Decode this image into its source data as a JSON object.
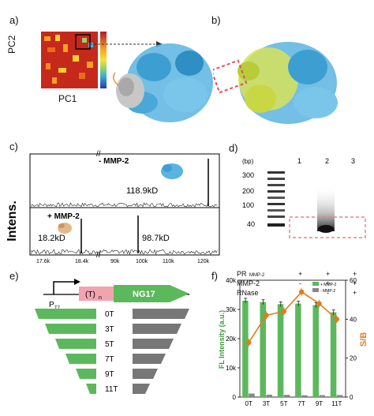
{
  "panels": {
    "a": {
      "label": "a)",
      "x_axis": "PC1",
      "y_axis": "PC2"
    },
    "b": {
      "label": "b)"
    },
    "c": {
      "label": "c)",
      "y_axis": "Intens.",
      "top_label": "- MMP-2",
      "top_peak": "118.9kD",
      "bottom_label": "+ MMP-2",
      "bottom_peak_1": "18.2kD",
      "bottom_peak_2": "98.7kD",
      "x_ticks": [
        "17.6k",
        "18.4k",
        "90k",
        "100k",
        "110k",
        "120k"
      ]
    },
    "d": {
      "label": "d)",
      "unit": "(bp)",
      "ladder": [
        "300",
        "200",
        "100",
        "40"
      ],
      "lanes": [
        "1",
        "2",
        "3"
      ],
      "rows": [
        {
          "name": "PR",
          "sub": "MMP-2",
          "values": [
            "+",
            "+",
            "+"
          ]
        },
        {
          "name": "MMP-2",
          "sub": "",
          "values": [
            "-",
            "+",
            "+"
          ]
        },
        {
          "name": "RNase",
          "sub": "",
          "values": [
            "-",
            "-",
            "+"
          ]
        }
      ]
    },
    "e": {
      "label": "e)",
      "promoter": "P",
      "promoter_sub": "T7",
      "insert": "(T)",
      "insert_sub": "n",
      "gene": "NG17",
      "variants": [
        "0T",
        "3T",
        "5T",
        "7T",
        "9T",
        "11T"
      ]
    },
    "f": {
      "label": "f)"
    }
  },
  "chart_data": {
    "type": "bar",
    "categories": [
      "0T",
      "3T",
      "5T",
      "7T",
      "9T",
      "11T"
    ],
    "series": [
      {
        "name": "+ MMP-2",
        "values": [
          33000,
          32500,
          31800,
          32000,
          31500,
          29000
        ],
        "color": "#5cb85c"
      },
      {
        "name": "- MMP-2",
        "values": [
          1200,
          800,
          750,
          600,
          650,
          700
        ],
        "color": "#888888"
      }
    ],
    "line_series": {
      "name": "S/B",
      "values": [
        28,
        42,
        44,
        54,
        48,
        40
      ],
      "color": "#e07b1f"
    },
    "ylabel": "FL Intensity (a.u.)",
    "y2label": "S/B",
    "ylim": [
      0,
      40000
    ],
    "y_ticks": [
      "0",
      "10k",
      "20k",
      "30k",
      "40k"
    ],
    "y2lim": [
      0,
      60
    ],
    "y2_ticks": [
      "0",
      "20",
      "40",
      "60"
    ]
  }
}
